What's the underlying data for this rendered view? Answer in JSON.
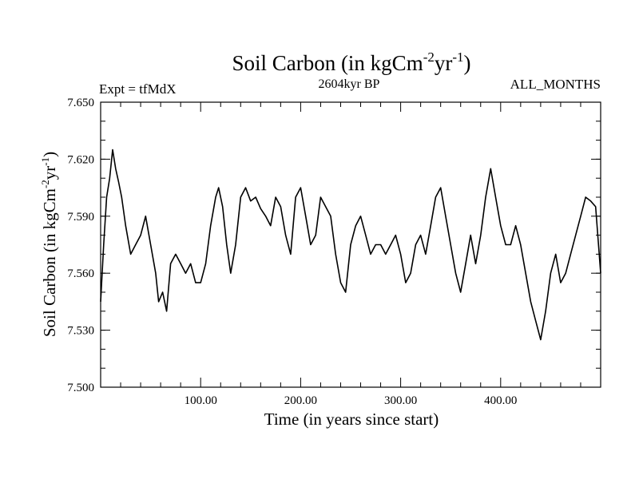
{
  "chart_data": {
    "type": "line",
    "title_main": "Soil Carbon (in kgCm",
    "title_exp1": "-2",
    "title_mid": "yr",
    "title_exp2": "-1",
    "title_end": ")",
    "left_label": "Expt = tfMdX",
    "center_label": "2604kyr BP",
    "right_label": "ALL_MONTHS",
    "xlabel": "Time (in years since start)",
    "ylabel_main": "Soil Carbon (in kgCm",
    "ylabel_exp1": "-2",
    "ylabel_mid": "yr",
    "ylabel_exp2": "-1",
    "ylabel_end": ")",
    "xlim": [
      0,
      500
    ],
    "ylim": [
      7.5,
      7.65
    ],
    "xticks": [
      100,
      200,
      300,
      400
    ],
    "xtick_labels": [
      "100.00",
      "200.00",
      "300.00",
      "400.00"
    ],
    "yticks": [
      7.5,
      7.53,
      7.56,
      7.59,
      7.62,
      7.65
    ],
    "ytick_labels": [
      "7.500",
      "7.530",
      "7.560",
      "7.590",
      "7.620",
      "7.650"
    ],
    "color": "#000000",
    "series": [
      {
        "x": [
          0,
          3,
          6,
          9,
          12,
          15,
          18,
          21,
          25,
          30,
          35,
          40,
          45,
          50,
          55,
          58,
          62,
          66,
          70,
          75,
          80,
          85,
          90,
          95,
          100,
          105,
          110,
          115,
          118,
          122,
          126,
          130,
          135,
          140,
          145,
          150,
          155,
          160,
          165,
          170,
          175,
          180,
          185,
          190,
          195,
          200,
          205,
          210,
          215,
          220,
          225,
          230,
          235,
          240,
          245,
          250,
          255,
          260,
          265,
          270,
          275,
          280,
          285,
          290,
          295,
          300,
          305,
          310,
          315,
          320,
          325,
          330,
          335,
          340,
          345,
          350,
          355,
          360,
          365,
          370,
          375,
          380,
          385,
          390,
          395,
          400,
          405,
          410,
          415,
          420,
          425,
          430,
          435,
          440,
          445,
          450,
          455,
          460,
          465,
          470,
          475,
          480,
          485,
          490,
          495,
          500
        ],
        "y": [
          7.545,
          7.575,
          7.6,
          7.61,
          7.625,
          7.615,
          7.608,
          7.6,
          7.585,
          7.57,
          7.575,
          7.58,
          7.59,
          7.575,
          7.56,
          7.545,
          7.55,
          7.54,
          7.565,
          7.57,
          7.565,
          7.56,
          7.565,
          7.555,
          7.555,
          7.565,
          7.585,
          7.6,
          7.605,
          7.595,
          7.575,
          7.56,
          7.575,
          7.6,
          7.605,
          7.598,
          7.6,
          7.594,
          7.59,
          7.585,
          7.6,
          7.595,
          7.58,
          7.57,
          7.6,
          7.605,
          7.59,
          7.575,
          7.58,
          7.6,
          7.595,
          7.59,
          7.57,
          7.555,
          7.55,
          7.575,
          7.585,
          7.59,
          7.58,
          7.57,
          7.575,
          7.575,
          7.57,
          7.575,
          7.58,
          7.57,
          7.555,
          7.56,
          7.575,
          7.58,
          7.57,
          7.585,
          7.6,
          7.605,
          7.59,
          7.575,
          7.56,
          7.55,
          7.565,
          7.58,
          7.565,
          7.58,
          7.6,
          7.615,
          7.6,
          7.585,
          7.575,
          7.575,
          7.585,
          7.575,
          7.56,
          7.545,
          7.535,
          7.525,
          7.54,
          7.56,
          7.57,
          7.555,
          7.56,
          7.57,
          7.58,
          7.59,
          7.6,
          7.598,
          7.595,
          7.56
        ]
      }
    ]
  }
}
